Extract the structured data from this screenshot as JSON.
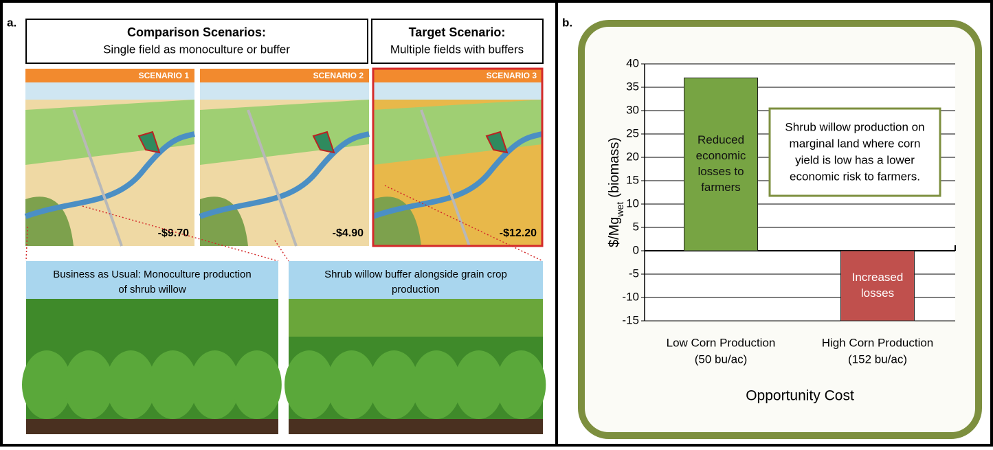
{
  "panel_a": {
    "label": "a.",
    "comparison_title": "Comparison Scenarios:",
    "comparison_subtitle": "Single field as monoculture or buffer",
    "target_title": "Target Scenario:",
    "target_subtitle": "Multiple fields with buffers",
    "scenarios": [
      {
        "name": "SCENARIO 1",
        "cost": "-$9.70"
      },
      {
        "name": "SCENARIO 2",
        "cost": "-$4.90"
      },
      {
        "name": "SCENARIO 3",
        "cost": "-$12.20"
      }
    ],
    "photos": [
      {
        "caption": [
          "Business as Usual: Monoculture production",
          "of shrub willow"
        ]
      },
      {
        "caption": [
          "Shrub willow buffer alongside grain crop",
          "production"
        ]
      }
    ]
  },
  "chart_data": {
    "type": "bar",
    "panel_label": "b.",
    "ylabel": "$/Mg",
    "ylabel_sub": "wet",
    "ylabel_suffix": "(biomass)",
    "xlabel": "Opportunity Cost",
    "categories": [
      "Low Corn Production",
      "High Corn Production"
    ],
    "category_sublabels": [
      "(50 bu/ac)",
      "(152 bu/ac)"
    ],
    "values": [
      37,
      -15
    ],
    "colors": [
      "#77a443",
      "#c0504d"
    ],
    "bar_annotations": [
      [
        "Reduced",
        "economic",
        "losses to",
        "farmers"
      ],
      [
        "Increased",
        "losses"
      ]
    ],
    "annotation": [
      "Shrub willow production on",
      "marginal land where corn",
      "yield is low has a lower",
      "economic risk to farmers."
    ],
    "ylim": [
      -15,
      40
    ],
    "yticks": [
      -15,
      -10,
      -5,
      0,
      5,
      10,
      15,
      20,
      25,
      30,
      35,
      40
    ],
    "grid": true
  }
}
